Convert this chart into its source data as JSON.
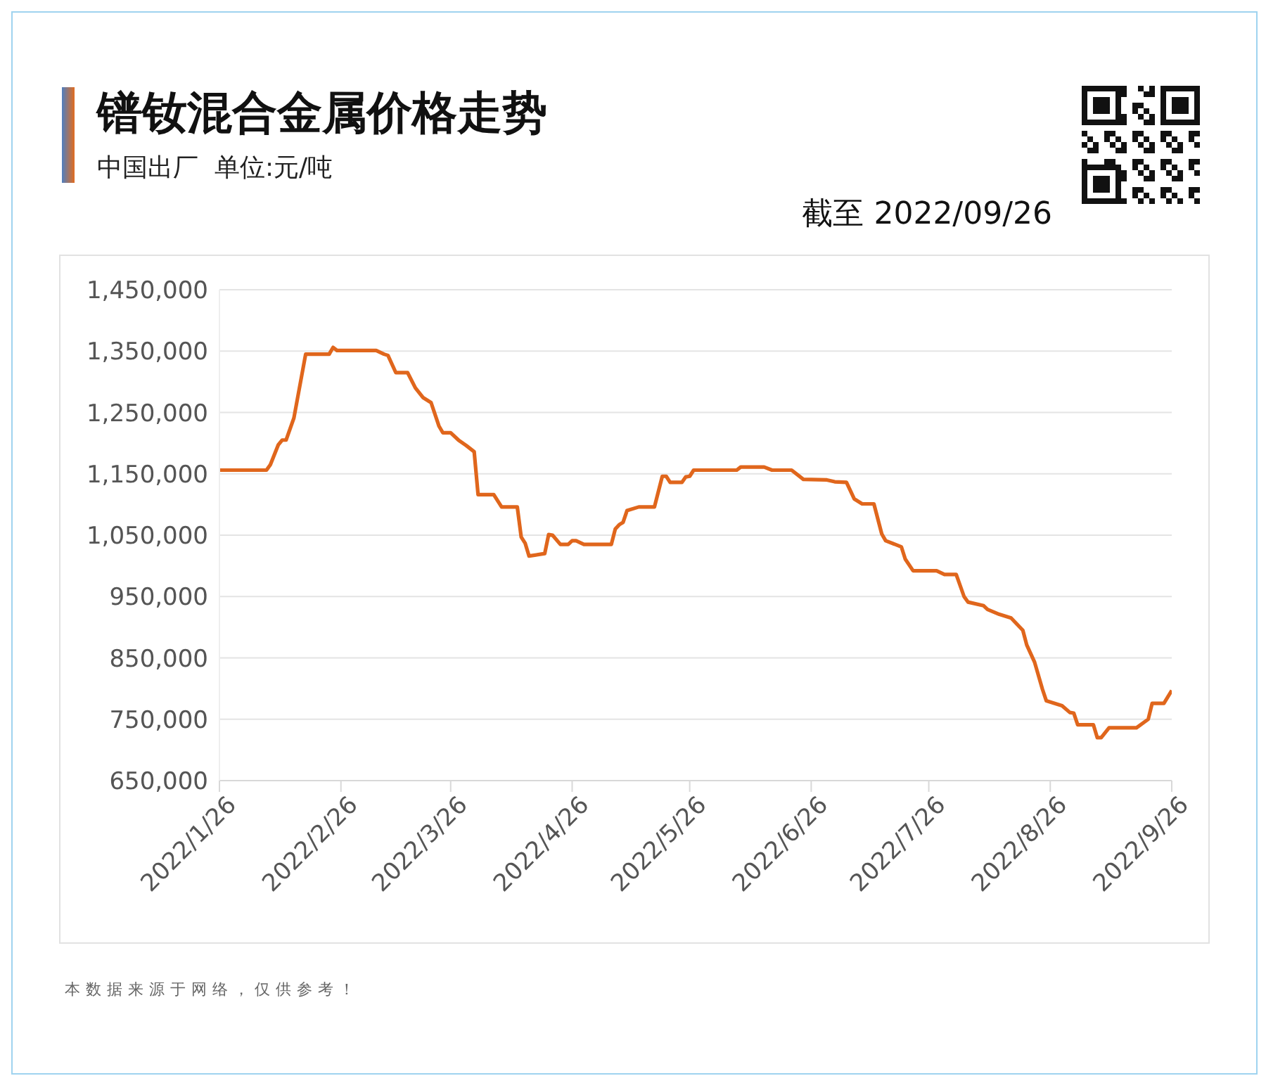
{
  "chart_data": {
    "type": "line",
    "title": "镨钕混合金属价格走势",
    "subtitle": "中国出厂  单位:元/吨",
    "annotations": [
      "截至 2022/09/26",
      "本数据来源于网络，仅供参考！"
    ],
    "x": [
      "2022-01-26",
      "2022-02-07",
      "2022-02-08",
      "2022-02-10",
      "2022-02-11",
      "2022-02-12",
      "2022-02-14",
      "2022-02-17",
      "2022-02-23",
      "2022-02-24",
      "2022-02-25",
      "2022-03-07",
      "2022-03-09",
      "2022-03-10",
      "2022-03-12",
      "2022-03-15",
      "2022-03-17",
      "2022-03-19",
      "2022-03-21",
      "2022-03-23",
      "2022-03-24",
      "2022-03-26",
      "2022-03-28",
      "2022-03-30",
      "2022-04-01",
      "2022-04-02",
      "2022-04-06",
      "2022-04-08",
      "2022-04-12",
      "2022-04-13",
      "2022-04-14",
      "2022-04-15",
      "2022-04-19",
      "2022-04-20",
      "2022-04-21",
      "2022-04-23",
      "2022-04-25",
      "2022-04-26",
      "2022-04-27",
      "2022-04-29",
      "2022-05-06",
      "2022-05-07",
      "2022-05-08",
      "2022-05-09",
      "2022-05-10",
      "2022-05-13",
      "2022-05-17",
      "2022-05-19",
      "2022-05-20",
      "2022-05-21",
      "2022-05-24",
      "2022-05-25",
      "2022-05-26",
      "2022-05-27",
      "2022-06-07",
      "2022-06-08",
      "2022-06-14",
      "2022-06-16",
      "2022-06-21",
      "2022-06-24",
      "2022-06-30",
      "2022-07-02",
      "2022-07-05",
      "2022-07-07",
      "2022-07-09",
      "2022-07-12",
      "2022-07-14",
      "2022-07-15",
      "2022-07-19",
      "2022-07-20",
      "2022-07-22",
      "2022-07-28",
      "2022-07-30",
      "2022-08-02",
      "2022-08-04",
      "2022-08-05",
      "2022-08-09",
      "2022-08-10",
      "2022-08-13",
      "2022-08-16",
      "2022-08-19",
      "2022-08-20",
      "2022-08-22",
      "2022-08-24",
      "2022-08-25",
      "2022-08-29",
      "2022-08-31",
      "2022-09-01",
      "2022-09-02",
      "2022-09-06",
      "2022-09-07",
      "2022-09-08",
      "2022-09-10",
      "2022-09-17",
      "2022-09-20",
      "2022-09-21",
      "2022-09-24",
      "2022-09-26"
    ],
    "series": [
      {
        "color": "#e0661c",
        "values": [
          1156000,
          1156000,
          1165000,
          1197000,
          1205000,
          1205000,
          1241000,
          1345000,
          1345000,
          1356000,
          1351000,
          1351000,
          1345000,
          1343000,
          1315000,
          1315000,
          1290000,
          1274000,
          1266000,
          1228000,
          1217000,
          1217000,
          1205000,
          1196000,
          1186000,
          1116000,
          1116000,
          1096000,
          1096000,
          1047000,
          1037000,
          1016000,
          1020000,
          1051000,
          1050000,
          1035000,
          1035000,
          1041000,
          1041000,
          1035000,
          1035000,
          1060000,
          1067000,
          1071000,
          1090000,
          1096000,
          1096000,
          1146000,
          1146000,
          1136000,
          1136000,
          1145000,
          1146000,
          1156000,
          1156000,
          1161000,
          1161000,
          1156000,
          1156000,
          1141000,
          1140000,
          1137000,
          1136000,
          1109000,
          1101000,
          1101000,
          1052000,
          1041000,
          1031000,
          1011000,
          992000,
          992000,
          986000,
          986000,
          950000,
          941000,
          935000,
          929000,
          921000,
          915000,
          895000,
          871000,
          843000,
          799000,
          780000,
          772000,
          761000,
          760000,
          741000,
          741000,
          720000,
          720000,
          736000,
          736000,
          750000,
          776000,
          776000,
          797000
        ]
      }
    ],
    "xlim": [
      "2022-01-26",
      "2022-09-26"
    ],
    "xticks": [
      {
        "value": "2022-01-26",
        "label": "2022/1/26"
      },
      {
        "value": "2022-02-26",
        "label": "2022/2/26"
      },
      {
        "value": "2022-03-26",
        "label": "2022/3/26"
      },
      {
        "value": "2022-04-26",
        "label": "2022/4/26"
      },
      {
        "value": "2022-05-26",
        "label": "2022/5/26"
      },
      {
        "value": "2022-06-26",
        "label": "2022/6/26"
      },
      {
        "value": "2022-07-26",
        "label": "2022/7/26"
      },
      {
        "value": "2022-08-26",
        "label": "2022/8/26"
      },
      {
        "value": "2022-09-26",
        "label": "2022/9/26"
      }
    ],
    "ylim": [
      650000,
      1450000
    ],
    "yticks": [
      {
        "value": 650000,
        "label": "650,000"
      },
      {
        "value": 750000,
        "label": "750,000"
      },
      {
        "value": 850000,
        "label": "850,000"
      },
      {
        "value": 950000,
        "label": "950,000"
      },
      {
        "value": 1050000,
        "label": "1,050,000"
      },
      {
        "value": 1150000,
        "label": "1,150,000"
      },
      {
        "value": 1250000,
        "label": "1,250,000"
      },
      {
        "value": 1350000,
        "label": "1,350,000"
      },
      {
        "value": 1450000,
        "label": "1,450,000"
      }
    ],
    "grid": "y",
    "legend": false,
    "marker": "none",
    "line_style": "solid"
  }
}
